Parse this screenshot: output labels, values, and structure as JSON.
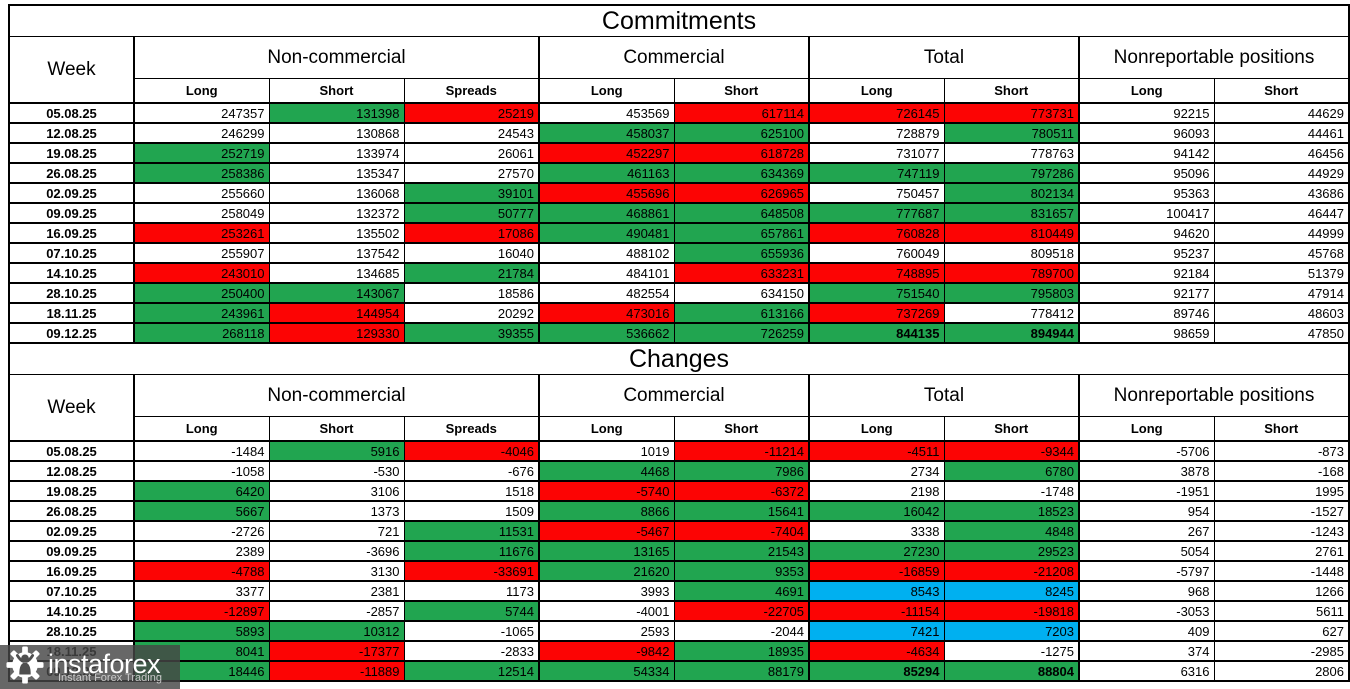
{
  "colors": {
    "green": "#21a550",
    "red": "#fc0404",
    "blue": "#00b0f0",
    "white": "#ffffff",
    "text": "#000000"
  },
  "color_legend": {
    "w": "white",
    "g": "green",
    "r": "red",
    "b": "blue"
  },
  "watermark": {
    "brand": "instaforex",
    "tagline": "Instant Forex Trading"
  },
  "chart_data": [
    {
      "type": "table",
      "title": "Commitments",
      "header": {
        "week": "Week",
        "groups": [
          {
            "label": "Non-commercial",
            "cols": [
              "Long",
              "Short",
              "Spreads"
            ]
          },
          {
            "label": "Commercial",
            "cols": [
              "Long",
              "Short"
            ]
          },
          {
            "label": "Total",
            "cols": [
              "Long",
              "Short"
            ]
          },
          {
            "label": "Nonreportable positions",
            "cols": [
              "Long",
              "Short"
            ]
          }
        ]
      },
      "rows": [
        {
          "week": "05.08.25",
          "cells": [
            [
              "247357",
              "w"
            ],
            [
              "131398",
              "g"
            ],
            [
              "25219",
              "r"
            ],
            [
              "453569",
              "w"
            ],
            [
              "617114",
              "r"
            ],
            [
              "726145",
              "r"
            ],
            [
              "773731",
              "r"
            ],
            [
              "92215",
              "w"
            ],
            [
              "44629",
              "w"
            ]
          ]
        },
        {
          "week": "12.08.25",
          "cells": [
            [
              "246299",
              "w"
            ],
            [
              "130868",
              "w"
            ],
            [
              "24543",
              "w"
            ],
            [
              "458037",
              "g"
            ],
            [
              "625100",
              "g"
            ],
            [
              "728879",
              "w"
            ],
            [
              "780511",
              "g"
            ],
            [
              "96093",
              "w"
            ],
            [
              "44461",
              "w"
            ]
          ]
        },
        {
          "week": "19.08.25",
          "cells": [
            [
              "252719",
              "g"
            ],
            [
              "133974",
              "w"
            ],
            [
              "26061",
              "w"
            ],
            [
              "452297",
              "r"
            ],
            [
              "618728",
              "r"
            ],
            [
              "731077",
              "w"
            ],
            [
              "778763",
              "w"
            ],
            [
              "94142",
              "w"
            ],
            [
              "46456",
              "w"
            ]
          ]
        },
        {
          "week": "26.08.25",
          "cells": [
            [
              "258386",
              "g"
            ],
            [
              "135347",
              "w"
            ],
            [
              "27570",
              "w"
            ],
            [
              "461163",
              "g"
            ],
            [
              "634369",
              "g"
            ],
            [
              "747119",
              "g"
            ],
            [
              "797286",
              "g"
            ],
            [
              "95096",
              "w"
            ],
            [
              "44929",
              "w"
            ]
          ]
        },
        {
          "week": "02.09.25",
          "cells": [
            [
              "255660",
              "w"
            ],
            [
              "136068",
              "w"
            ],
            [
              "39101",
              "g"
            ],
            [
              "455696",
              "r"
            ],
            [
              "626965",
              "r"
            ],
            [
              "750457",
              "w"
            ],
            [
              "802134",
              "g"
            ],
            [
              "95363",
              "w"
            ],
            [
              "43686",
              "w"
            ]
          ]
        },
        {
          "week": "09.09.25",
          "cells": [
            [
              "258049",
              "w"
            ],
            [
              "132372",
              "w"
            ],
            [
              "50777",
              "g"
            ],
            [
              "468861",
              "g"
            ],
            [
              "648508",
              "g"
            ],
            [
              "777687",
              "g"
            ],
            [
              "831657",
              "g"
            ],
            [
              "100417",
              "w"
            ],
            [
              "46447",
              "w"
            ]
          ]
        },
        {
          "week": "16.09.25",
          "cells": [
            [
              "253261",
              "r"
            ],
            [
              "135502",
              "w"
            ],
            [
              "17086",
              "r"
            ],
            [
              "490481",
              "g"
            ],
            [
              "657861",
              "g"
            ],
            [
              "760828",
              "r"
            ],
            [
              "810449",
              "r"
            ],
            [
              "94620",
              "w"
            ],
            [
              "44999",
              "w"
            ]
          ]
        },
        {
          "week": "07.10.25",
          "cells": [
            [
              "255907",
              "w"
            ],
            [
              "137542",
              "w"
            ],
            [
              "16040",
              "w"
            ],
            [
              "488102",
              "w"
            ],
            [
              "655936",
              "g"
            ],
            [
              "760049",
              "w"
            ],
            [
              "809518",
              "w"
            ],
            [
              "95237",
              "w"
            ],
            [
              "45768",
              "w"
            ]
          ]
        },
        {
          "week": "14.10.25",
          "cells": [
            [
              "243010",
              "r"
            ],
            [
              "134685",
              "w"
            ],
            [
              "21784",
              "g"
            ],
            [
              "484101",
              "w"
            ],
            [
              "633231",
              "r"
            ],
            [
              "748895",
              "r"
            ],
            [
              "789700",
              "r"
            ],
            [
              "92184",
              "w"
            ],
            [
              "51379",
              "w"
            ]
          ]
        },
        {
          "week": "28.10.25",
          "cells": [
            [
              "250400",
              "g"
            ],
            [
              "143067",
              "g"
            ],
            [
              "18586",
              "w"
            ],
            [
              "482554",
              "w"
            ],
            [
              "634150",
              "w"
            ],
            [
              "751540",
              "g"
            ],
            [
              "795803",
              "g"
            ],
            [
              "92177",
              "w"
            ],
            [
              "47914",
              "w"
            ]
          ]
        },
        {
          "week": "18.11.25",
          "cells": [
            [
              "243961",
              "g"
            ],
            [
              "144954",
              "r"
            ],
            [
              "20292",
              "w"
            ],
            [
              "473016",
              "r"
            ],
            [
              "613166",
              "g"
            ],
            [
              "737269",
              "r"
            ],
            [
              "778412",
              "w"
            ],
            [
              "89746",
              "w"
            ],
            [
              "48603",
              "w"
            ]
          ]
        },
        {
          "week": "09.12.25",
          "cells": [
            [
              "268118",
              "g"
            ],
            [
              "129330",
              "r"
            ],
            [
              "39355",
              "g"
            ],
            [
              "536662",
              "g"
            ],
            [
              "726259",
              "g"
            ],
            [
              "844135",
              "g",
              "b"
            ],
            [
              "894944",
              "g",
              "b"
            ],
            [
              "98659",
              "w"
            ],
            [
              "47850",
              "w"
            ]
          ]
        }
      ]
    },
    {
      "type": "table",
      "title": "Changes",
      "header": {
        "week": "Week",
        "groups": [
          {
            "label": "Non-commercial",
            "cols": [
              "Long",
              "Short",
              "Spreads"
            ]
          },
          {
            "label": "Commercial",
            "cols": [
              "Long",
              "Short"
            ]
          },
          {
            "label": "Total",
            "cols": [
              "Long",
              "Short"
            ]
          },
          {
            "label": "Nonreportable positions",
            "cols": [
              "Long",
              "Short"
            ]
          }
        ]
      },
      "rows": [
        {
          "week": "05.08.25",
          "cells": [
            [
              "-1484",
              "w"
            ],
            [
              "5916",
              "g"
            ],
            [
              "-4046",
              "r"
            ],
            [
              "1019",
              "w"
            ],
            [
              "-11214",
              "r"
            ],
            [
              "-4511",
              "r"
            ],
            [
              "-9344",
              "r"
            ],
            [
              "-5706",
              "w"
            ],
            [
              "-873",
              "w"
            ]
          ]
        },
        {
          "week": "12.08.25",
          "cells": [
            [
              "-1058",
              "w"
            ],
            [
              "-530",
              "w"
            ],
            [
              "-676",
              "w"
            ],
            [
              "4468",
              "g"
            ],
            [
              "7986",
              "g"
            ],
            [
              "2734",
              "w"
            ],
            [
              "6780",
              "g"
            ],
            [
              "3878",
              "w"
            ],
            [
              "-168",
              "w"
            ]
          ]
        },
        {
          "week": "19.08.25",
          "cells": [
            [
              "6420",
              "g"
            ],
            [
              "3106",
              "w"
            ],
            [
              "1518",
              "w"
            ],
            [
              "-5740",
              "r"
            ],
            [
              "-6372",
              "r"
            ],
            [
              "2198",
              "w"
            ],
            [
              "-1748",
              "w"
            ],
            [
              "-1951",
              "w"
            ],
            [
              "1995",
              "w"
            ]
          ]
        },
        {
          "week": "26.08.25",
          "cells": [
            [
              "5667",
              "g"
            ],
            [
              "1373",
              "w"
            ],
            [
              "1509",
              "w"
            ],
            [
              "8866",
              "g"
            ],
            [
              "15641",
              "g"
            ],
            [
              "16042",
              "g"
            ],
            [
              "18523",
              "g"
            ],
            [
              "954",
              "w"
            ],
            [
              "-1527",
              "w"
            ]
          ]
        },
        {
          "week": "02.09.25",
          "cells": [
            [
              "-2726",
              "w"
            ],
            [
              "721",
              "w"
            ],
            [
              "11531",
              "g"
            ],
            [
              "-5467",
              "r"
            ],
            [
              "-7404",
              "r"
            ],
            [
              "3338",
              "w"
            ],
            [
              "4848",
              "g"
            ],
            [
              "267",
              "w"
            ],
            [
              "-1243",
              "w"
            ]
          ]
        },
        {
          "week": "09.09.25",
          "cells": [
            [
              "2389",
              "w"
            ],
            [
              "-3696",
              "w"
            ],
            [
              "11676",
              "g"
            ],
            [
              "13165",
              "g"
            ],
            [
              "21543",
              "g"
            ],
            [
              "27230",
              "g"
            ],
            [
              "29523",
              "g"
            ],
            [
              "5054",
              "w"
            ],
            [
              "2761",
              "w"
            ]
          ]
        },
        {
          "week": "16.09.25",
          "cells": [
            [
              "-4788",
              "r"
            ],
            [
              "3130",
              "w"
            ],
            [
              "-33691",
              "r"
            ],
            [
              "21620",
              "g"
            ],
            [
              "9353",
              "g"
            ],
            [
              "-16859",
              "r"
            ],
            [
              "-21208",
              "r"
            ],
            [
              "-5797",
              "w"
            ],
            [
              "-1448",
              "w"
            ]
          ]
        },
        {
          "week": "07.10.25",
          "cells": [
            [
              "3377",
              "w"
            ],
            [
              "2381",
              "w"
            ],
            [
              "1173",
              "w"
            ],
            [
              "3993",
              "w"
            ],
            [
              "4691",
              "g"
            ],
            [
              "8543",
              "b"
            ],
            [
              "8245",
              "b"
            ],
            [
              "968",
              "w"
            ],
            [
              "1266",
              "w"
            ]
          ]
        },
        {
          "week": "14.10.25",
          "cells": [
            [
              "-12897",
              "r"
            ],
            [
              "-2857",
              "w"
            ],
            [
              "5744",
              "g"
            ],
            [
              "-4001",
              "w"
            ],
            [
              "-22705",
              "r"
            ],
            [
              "-11154",
              "r"
            ],
            [
              "-19818",
              "r"
            ],
            [
              "-3053",
              "w"
            ],
            [
              "5611",
              "w"
            ]
          ]
        },
        {
          "week": "28.10.25",
          "cells": [
            [
              "5893",
              "g"
            ],
            [
              "10312",
              "g"
            ],
            [
              "-1065",
              "w"
            ],
            [
              "2593",
              "w"
            ],
            [
              "-2044",
              "w"
            ],
            [
              "7421",
              "b"
            ],
            [
              "7203",
              "b"
            ],
            [
              "409",
              "w"
            ],
            [
              "627",
              "w"
            ]
          ]
        },
        {
          "week": "18.11.25",
          "cells": [
            [
              "8041",
              "g"
            ],
            [
              "-17377",
              "r"
            ],
            [
              "-2833",
              "w"
            ],
            [
              "-9842",
              "r"
            ],
            [
              "18935",
              "g"
            ],
            [
              "-4634",
              "r"
            ],
            [
              "-1275",
              "w"
            ],
            [
              "374",
              "w"
            ],
            [
              "-2985",
              "w"
            ]
          ]
        },
        {
          "week": "09.12.25",
          "cells": [
            [
              "18446",
              "g"
            ],
            [
              "-11889",
              "r"
            ],
            [
              "12514",
              "g"
            ],
            [
              "54334",
              "g"
            ],
            [
              "88179",
              "g"
            ],
            [
              "85294",
              "g",
              "b"
            ],
            [
              "88804",
              "g",
              "b"
            ],
            [
              "6316",
              "w"
            ],
            [
              "2806",
              "w"
            ]
          ]
        }
      ]
    }
  ]
}
